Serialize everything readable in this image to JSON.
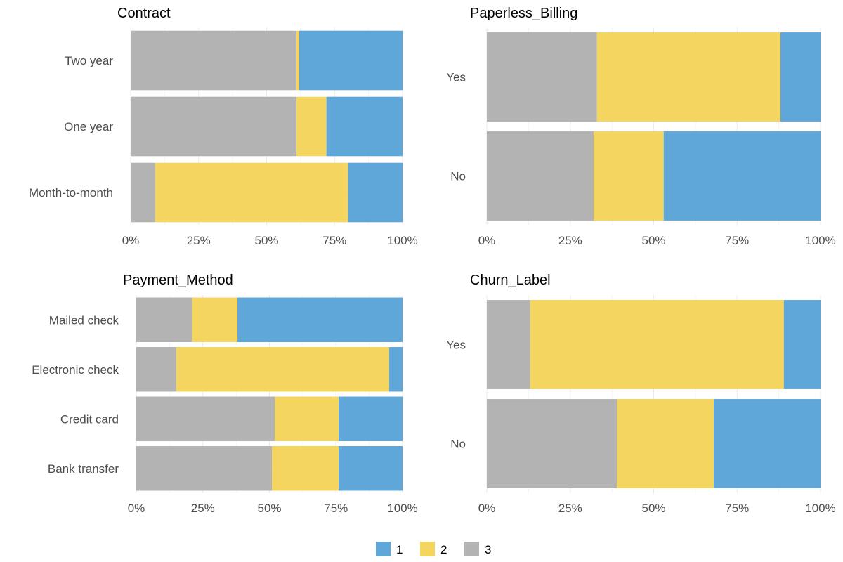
{
  "chart_data": {
    "type": "bar",
    "orientation": "horizontal",
    "stacked": "percent",
    "x_ticks": [
      "0%",
      "25%",
      "50%",
      "75%",
      "100%"
    ],
    "colors": {
      "1": "#5fa7d9",
      "2": "#f3d560",
      "3": "#b3b3b3"
    },
    "legend": {
      "placement": "bottom",
      "items": [
        "1",
        "2",
        "3"
      ]
    },
    "panels": [
      {
        "title": "Contract",
        "categories": [
          "Two year",
          "One year",
          "Month-to-month"
        ],
        "series": [
          {
            "name": "3",
            "values": [
              0.61,
              0.61,
              0.09
            ]
          },
          {
            "name": "2",
            "values": [
              0.01,
              0.11,
              0.71
            ]
          },
          {
            "name": "1",
            "values": [
              0.38,
              0.28,
              0.2
            ]
          }
        ]
      },
      {
        "title": "Paperless_Billing",
        "categories": [
          "Yes",
          "No"
        ],
        "series": [
          {
            "name": "3",
            "values": [
              0.33,
              0.32
            ]
          },
          {
            "name": "2",
            "values": [
              0.55,
              0.21
            ]
          },
          {
            "name": "1",
            "values": [
              0.12,
              0.47
            ]
          }
        ]
      },
      {
        "title": "Payment_Method",
        "categories": [
          "Mailed check",
          "Electronic check",
          "Credit card",
          "Bank transfer"
        ],
        "series": [
          {
            "name": "3",
            "values": [
              0.21,
              0.15,
              0.52,
              0.51
            ]
          },
          {
            "name": "2",
            "values": [
              0.17,
              0.8,
              0.24,
              0.25
            ]
          },
          {
            "name": "1",
            "values": [
              0.62,
              0.05,
              0.24,
              0.24
            ]
          }
        ]
      },
      {
        "title": "Churn_Label",
        "categories": [
          "Yes",
          "No"
        ],
        "series": [
          {
            "name": "3",
            "values": [
              0.13,
              0.39
            ]
          },
          {
            "name": "2",
            "values": [
              0.76,
              0.29
            ]
          },
          {
            "name": "1",
            "values": [
              0.11,
              0.32
            ]
          }
        ]
      }
    ]
  }
}
